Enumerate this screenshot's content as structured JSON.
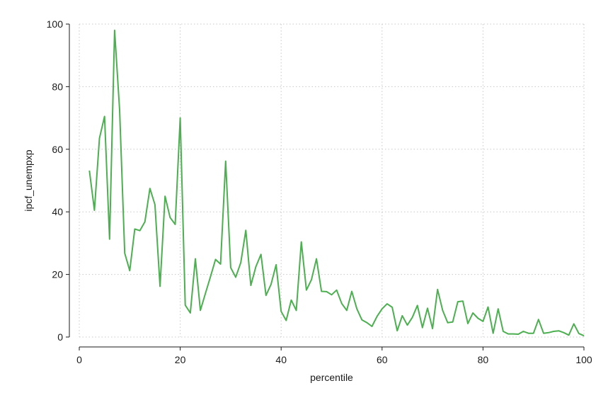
{
  "chart_data": {
    "type": "line",
    "title": "",
    "xlabel": "percentile",
    "ylabel": "ipcf_unempxp",
    "xlim": [
      0,
      100
    ],
    "ylim": [
      0,
      100
    ],
    "xticks": [
      0,
      20,
      40,
      60,
      80,
      100
    ],
    "yticks": [
      0,
      20,
      40,
      60,
      80,
      100
    ],
    "grid": true,
    "line_color": "#4caf50",
    "grid_color": "#c8c8c8",
    "series": [
      {
        "x": [
          2,
          3,
          4,
          5,
          6,
          7,
          8,
          9,
          10,
          11,
          12,
          13,
          14,
          15,
          16,
          17,
          18,
          19,
          20,
          21,
          22,
          23,
          24,
          25,
          26,
          27,
          28,
          29,
          30,
          31,
          32,
          33,
          34,
          35,
          36,
          37,
          38,
          39,
          40,
          41,
          42,
          43,
          44,
          45,
          46,
          47,
          48,
          49,
          50,
          51,
          52,
          53,
          54,
          55,
          56,
          57,
          58,
          59,
          60,
          61,
          62,
          63,
          64,
          65,
          66,
          67,
          68,
          69,
          70,
          71,
          72,
          73,
          74,
          75,
          76,
          77,
          78,
          79,
          80,
          81,
          82,
          83,
          84,
          85,
          86,
          87,
          88,
          89,
          90,
          91,
          92,
          93,
          94,
          95,
          96,
          97,
          98,
          99,
          100
        ],
        "y": [
          53.2,
          40.5,
          63.5,
          70.5,
          31.3,
          98.0,
          72.5,
          26.8,
          21.2,
          34.5,
          34.0,
          36.8,
          47.5,
          42.3,
          16.2,
          45.0,
          38.2,
          36.0,
          70.0,
          10.2,
          7.7,
          25.0,
          8.5,
          14.0,
          19.3,
          24.8,
          23.3,
          56.2,
          22.2,
          19.1,
          23.8,
          34.1,
          16.5,
          22.5,
          26.4,
          13.3,
          16.8,
          23.1,
          8.2,
          5.3,
          11.8,
          8.5,
          30.4,
          15.0,
          18.3,
          25.0,
          14.6,
          14.5,
          13.5,
          15.0,
          10.7,
          8.5,
          14.6,
          9.0,
          5.5,
          4.6,
          3.4,
          6.6,
          9.0,
          10.6,
          9.5,
          2.0,
          6.8,
          3.8,
          6.3,
          10.1,
          3.0,
          9.2,
          2.7,
          15.2,
          8.5,
          4.6,
          4.8,
          11.3,
          11.5,
          4.3,
          7.7,
          6.0,
          5.0,
          9.6,
          1.2,
          9.0,
          1.8,
          1.0,
          1.0,
          0.9,
          1.8,
          1.2,
          1.2,
          5.6,
          1.2,
          1.4,
          1.8,
          2.0,
          1.4,
          0.6,
          4.2,
          1.1,
          0.4
        ]
      }
    ]
  }
}
